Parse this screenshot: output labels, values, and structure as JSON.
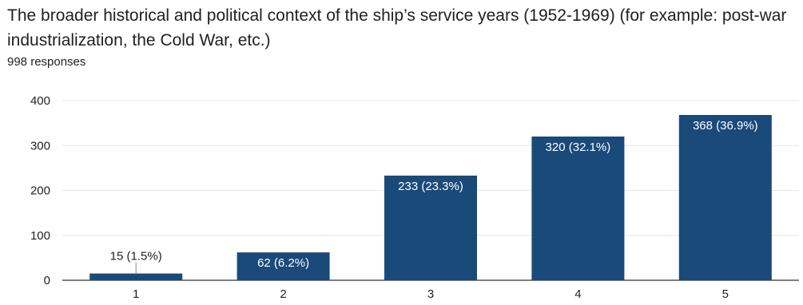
{
  "question": {
    "title": "The broader historical and political context of the ship’s service years (1952-1969) (for example: post-war industrialization, the Cold War, etc.)",
    "response_count": "998 responses"
  },
  "colors": {
    "bar": "#1a4a7a",
    "grid": "#e6e6e6",
    "axis": "#333333",
    "label_inside": "#ffffff",
    "label_outside": "#202124"
  },
  "chart_data": {
    "type": "bar",
    "categories": [
      "1",
      "2",
      "3",
      "4",
      "5"
    ],
    "values": [
      15,
      62,
      233,
      320,
      368
    ],
    "data_labels": [
      "15 (1.5%)",
      "62 (6.2%)",
      "233 (23.3%)",
      "320 (32.1%)",
      "368 (36.9%)"
    ],
    "yticks": [
      0,
      100,
      200,
      300,
      400
    ],
    "ylim": [
      0,
      400
    ],
    "grid": true,
    "legend": "none"
  }
}
